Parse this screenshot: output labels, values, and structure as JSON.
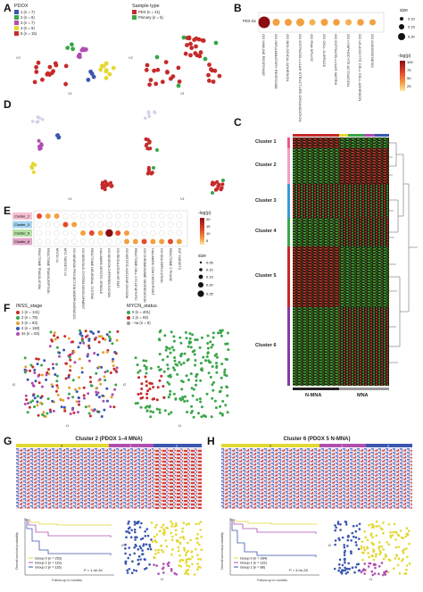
{
  "panels": {
    "A": "A",
    "B": "B",
    "C": "C",
    "D": "D",
    "E": "E",
    "F": "F",
    "G": "G",
    "H": "H"
  },
  "panelA": {
    "left_legend_title": "PDOX",
    "left_legend": [
      {
        "label": "1 (n = 7)",
        "color": "#3a56b0"
      },
      {
        "label": "2 (n = 8)",
        "color": "#3aa64a"
      },
      {
        "label": "3 (n = 7)",
        "color": "#b04db0"
      },
      {
        "label": "4 (n = 9)",
        "color": "#e3d832"
      },
      {
        "label": "5 (n = 15)",
        "color": "#c62a2a"
      }
    ],
    "right_legend_title": "Sample type",
    "right_legend": [
      {
        "label": "PDX (n = 41)",
        "color": "#c62a2a"
      },
      {
        "label": "Primary (n = 5)",
        "color": "#3aa64a"
      }
    ],
    "axis_x": "V1",
    "axis_y": "V2"
  },
  "panelB": {
    "row_label": "PDX Dx",
    "terms": [
      "GO IMMUNE RESPONSE",
      "GO INFLAMMATORY RESPONSE",
      "GO BIOLOGICAL ADHESION",
      "GO EXTRACELLULAR STRUCTURE ORGANIZATION",
      "GO RNA SPLICE",
      "GO CELL SURFACE",
      "GO EXTRACELLULAR MATRIX",
      "GO LYMPHOCYTE ACTIVATION",
      "GO LEUKOCYTE CELL CELL ADHESION",
      "GO ANGIOGENESIS"
    ],
    "size_title": "size",
    "size_levels": [
      "0.10",
      "0.15",
      "0.20"
    ],
    "color_title": "-log(p)",
    "color_ticks": [
      "100",
      "75",
      "50",
      "25"
    ]
  },
  "panelC": {
    "clusters": [
      "Cluster 1",
      "Cluster 2",
      "Cluster 3",
      "Cluster 4",
      "Cluster 5",
      "Cluster 6"
    ],
    "group_labels": [
      "N-MNA",
      "MNA"
    ]
  },
  "panelE": {
    "rows": [
      "Cluster_2",
      "Cluster_3",
      "Cluster_5",
      "Cluster_6"
    ],
    "terms": [
      "REACTOME TRANSLATION",
      "REACTOME TRANSCRIPTION",
      "MYCN V1",
      "MYC TARGETS V1",
      "GO NEURON PROJECTION MORPHOGENESIS",
      "GO NERVOUS SYSTEM DEVELOPMENT",
      "REACTOME NEURONAL SYSTEM",
      "HALLMARK MITOTIC SPINDLE",
      "GO NEURON DIFFERENTIATION",
      "GO REGULATION OF EMT",
      "GO MITOTIC NUCLEAR DIVISION",
      "REACTOME CELL CYCLE MITOTIC",
      "GO CHROMOSOME SEGREGATION",
      "HALLMARK G2M CHECKPOINT",
      "GO DNA REPLICATION",
      "REACTOME S PHASE",
      "E2F TARGETS"
    ],
    "color_title": "-log(p)",
    "color_ticks": [
      "20",
      "15",
      "10",
      "5"
    ],
    "size_title": "size",
    "size_levels": [
      "0.05",
      "0.10",
      "0.15",
      "0.20",
      "0.25"
    ]
  },
  "panelF": {
    "left_title": "INSS_stage",
    "left_legend": [
      {
        "label": "1 (n = 121)",
        "color": "#c62a2a"
      },
      {
        "label": "2 (n = 78)",
        "color": "#3aa64a"
      },
      {
        "label": "3 (n = 63)",
        "color": "#e3a232"
      },
      {
        "label": "4 (n = 183)",
        "color": "#3a56b0"
      },
      {
        "label": "4s (n = 53)",
        "color": "#b04db0"
      }
    ],
    "right_title": "MYCN_status",
    "right_legend": [
      {
        "label": "0 (n = 401)",
        "color": "#3aa64a"
      },
      {
        "label": "1 (n = 92)",
        "color": "#c62a2a"
      },
      {
        "label": "- na (n = 5)",
        "color": "#999999"
      }
    ],
    "axis_x": "t1",
    "axis_y": "t2"
  },
  "panelG": {
    "title": "Cluster 2 (PDOX 1–4 MNA)",
    "groups": [
      "0",
      "1",
      "2"
    ],
    "group_colors": [
      "#e3d832",
      "#b04db0",
      "#3a56b0"
    ],
    "km_ylabel": "Overall survival probability",
    "km_xlabel": "Follow-up in months",
    "km_legend": [
      {
        "label": "Group 0 (n = 252)",
        "color": "#e3d832"
      },
      {
        "label": "Group 1 (n = 119)",
        "color": "#b04db0"
      },
      {
        "label": "Group 2 (n = 116)",
        "color": "#3a56b0"
      }
    ],
    "pvalue": "P = 1.4e-34",
    "tsne_y": "t2",
    "tsne_x": "t1"
  },
  "panelH": {
    "title": "Cluster 6 (PDOX 5 N-MNA)",
    "groups": [
      "0",
      "1",
      "2"
    ],
    "group_colors": [
      "#e3d832",
      "#b04db0",
      "#3a56b0"
    ],
    "km_ylabel": "Overall survival probability",
    "km_xlabel": "Follow-up in months",
    "km_legend": [
      {
        "label": "Group 0 (n = 284)",
        "color": "#e3d832"
      },
      {
        "label": "Group 1 (n = 115)",
        "color": "#b04db0"
      },
      {
        "label": "Group 2 (n = 88)",
        "color": "#3a56b0"
      }
    ],
    "pvalue": "P = 4.0e-28",
    "tsne_y": "t2",
    "tsne_x": "t1"
  }
}
